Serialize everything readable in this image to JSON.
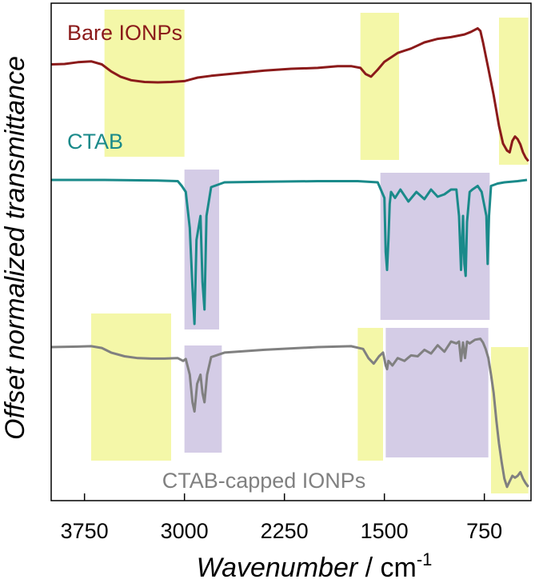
{
  "chart_data": {
    "type": "line",
    "xlabel_main": "Wavenumber",
    "xlabel_sep": " / ",
    "xlabel_unit": "cm",
    "xlabel_exp": "-1",
    "ylabel": "Offset normalized transmittance",
    "xlim": [
      4000,
      400
    ],
    "x_reversed": true,
    "xticks": [
      3750,
      3000,
      2250,
      1500,
      750
    ],
    "grid": false,
    "series": [
      {
        "name": "Bare IONPs",
        "color": "#8b1a1a",
        "label_pos": "top-left",
        "x": [
          4000,
          3900,
          3800,
          3700,
          3620,
          3550,
          3480,
          3400,
          3300,
          3200,
          3100,
          3000,
          2950,
          2900,
          2800,
          2600,
          2400,
          2200,
          2000,
          1850,
          1750,
          1680,
          1640,
          1600,
          1550,
          1500,
          1400,
          1300,
          1200,
          1100,
          1000,
          900,
          850,
          800,
          780,
          760,
          720,
          680,
          640,
          610,
          580,
          560,
          540,
          520,
          500,
          480,
          460,
          440,
          420
        ],
        "y": [
          0.5,
          0.55,
          0.75,
          0.85,
          0.5,
          -0.3,
          -0.9,
          -1.3,
          -1.5,
          -1.55,
          -1.5,
          -1.4,
          -1.2,
          -1.0,
          -0.8,
          -0.5,
          -0.2,
          0.0,
          0.1,
          0.3,
          0.3,
          0.1,
          -0.6,
          -0.9,
          -0.1,
          0.8,
          1.8,
          2.3,
          3.0,
          3.4,
          3.6,
          3.9,
          4.2,
          4.6,
          4.3,
          3.0,
          0.0,
          -3.0,
          -6.5,
          -8.5,
          -9.3,
          -9.5,
          -8.2,
          -7.7,
          -8.0,
          -8.6,
          -9.5,
          -10.1,
          -10.5
        ]
      },
      {
        "name": "CTAB",
        "color": "#1a8a8a",
        "label_pos": "top-left",
        "x": [
          4000,
          3600,
          3200,
          3050,
          3020,
          2990,
          2960,
          2940,
          2925,
          2910,
          2880,
          2865,
          2850,
          2835,
          2800,
          2700,
          2400,
          2000,
          1700,
          1550,
          1500,
          1490,
          1480,
          1470,
          1460,
          1450,
          1420,
          1380,
          1320,
          1260,
          1200,
          1150,
          1100,
          1050,
          1000,
          960,
          940,
          925,
          910,
          900,
          890,
          880,
          860,
          840,
          800,
          770,
          735,
          725,
          715,
          700,
          650,
          600,
          500,
          430
        ],
        "y": [
          0.0,
          0.0,
          -0.05,
          -0.1,
          -0.5,
          -1.0,
          -4.0,
          -9.0,
          -12.0,
          -5.0,
          -3.0,
          -8.5,
          -10.8,
          -3.0,
          -0.6,
          -0.2,
          -0.15,
          -0.1,
          -0.1,
          -0.2,
          -1.5,
          -6.0,
          -7.5,
          -5.0,
          -2.0,
          -1.0,
          -1.5,
          -0.8,
          -1.8,
          -1.0,
          -1.6,
          -0.8,
          -1.4,
          -1.2,
          -0.8,
          -0.8,
          -3.0,
          -7.5,
          -3.0,
          -7.0,
          -8.0,
          -3.5,
          -1.0,
          -0.8,
          -0.5,
          -1.0,
          -3.0,
          -7.0,
          -3.0,
          -0.5,
          -0.3,
          -0.2,
          -0.1,
          0.0
        ]
      },
      {
        "name": "CTAB-capped IONPs",
        "color": "#808080",
        "label_pos": "bottom-center",
        "x": [
          4000,
          3800,
          3700,
          3620,
          3550,
          3450,
          3350,
          3250,
          3150,
          3050,
          3010,
          2990,
          2960,
          2940,
          2925,
          2905,
          2880,
          2865,
          2850,
          2830,
          2800,
          2700,
          2400,
          2000,
          1750,
          1660,
          1620,
          1580,
          1540,
          1510,
          1490,
          1480,
          1470,
          1440,
          1400,
          1350,
          1300,
          1250,
          1200,
          1150,
          1100,
          1050,
          1000,
          960,
          940,
          925,
          910,
          895,
          880,
          860,
          820,
          780,
          760,
          740,
          720,
          700,
          680,
          660,
          640,
          620,
          600,
          580,
          560,
          540,
          520,
          500,
          480,
          460,
          440,
          420
        ],
        "y": [
          0.0,
          0.05,
          0.1,
          -0.1,
          -0.6,
          -1.0,
          -1.2,
          -1.25,
          -1.25,
          -1.2,
          -1.5,
          -1.3,
          -3.0,
          -6.0,
          -7.0,
          -4.0,
          -3.0,
          -5.0,
          -6.0,
          -3.0,
          -1.1,
          -0.6,
          -0.3,
          0.0,
          0.1,
          -0.2,
          -1.2,
          -1.8,
          -1.0,
          -0.6,
          -2.0,
          -2.4,
          -1.5,
          -2.0,
          -1.2,
          -1.5,
          -0.9,
          -1.0,
          -0.3,
          -0.7,
          0.2,
          -0.5,
          0.6,
          0.4,
          0.6,
          -1.5,
          0.5,
          -1.2,
          0.6,
          0.4,
          0.8,
          0.9,
          0.5,
          -0.2,
          -1.2,
          -3.0,
          -5.0,
          -8.0,
          -10.5,
          -12.5,
          -14.3,
          -15.2,
          -14.6,
          -14.0,
          -14.2,
          -14.0,
          -13.6,
          -14.3,
          -14.8,
          -15.2
        ]
      }
    ],
    "bands": [
      {
        "x_from": 3600,
        "x_to": 3000,
        "series": "Bare IONPs",
        "color": "#f4f7a8"
      },
      {
        "x_from": 1680,
        "x_to": 1390,
        "series": "Bare IONPs",
        "color": "#f4f7a8"
      },
      {
        "x_from": 640,
        "x_to": 420,
        "series": "Bare IONPs",
        "color": "#f4f7a8"
      },
      {
        "x_from": 3000,
        "x_to": 2740,
        "series": "CTAB",
        "color": "#d4cce6"
      },
      {
        "x_from": 1530,
        "x_to": 710,
        "series": "CTAB",
        "color": "#d4cce6"
      },
      {
        "x_from": 3700,
        "x_to": 3100,
        "series": "CTAB-capped IONPs",
        "color": "#f4f7a8"
      },
      {
        "x_from": 3000,
        "x_to": 2720,
        "series": "CTAB-capped IONPs",
        "color": "#d4cce6"
      },
      {
        "x_from": 1700,
        "x_to": 1510,
        "series": "CTAB-capped IONPs",
        "color": "#f4f7a8"
      },
      {
        "x_from": 1490,
        "x_to": 720,
        "series": "CTAB-capped IONPs",
        "color": "#d4cce6"
      },
      {
        "x_from": 700,
        "x_to": 420,
        "series": "CTAB-capped IONPs",
        "color": "#f4f7a8"
      }
    ]
  }
}
